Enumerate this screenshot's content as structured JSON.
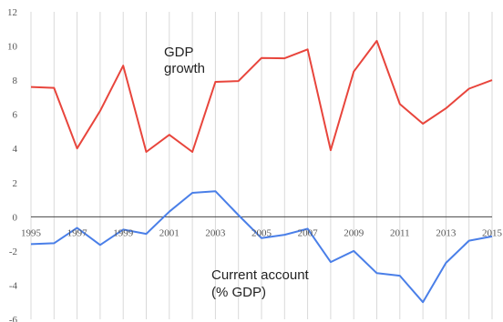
{
  "chart_data": {
    "type": "line",
    "title": "",
    "xlabel": "",
    "ylabel": "",
    "xlim": [
      1995,
      2015
    ],
    "ylim": [
      -6,
      12
    ],
    "y_ticks": [
      -6,
      -4,
      -2,
      0,
      2,
      4,
      6,
      8,
      10,
      12
    ],
    "x_ticks": [
      1995,
      1997,
      1999,
      2001,
      2003,
      2005,
      2007,
      2009,
      2011,
      2013,
      2015
    ],
    "x": [
      1995,
      1996,
      1997,
      1998,
      1999,
      2000,
      2001,
      2002,
      2003,
      2004,
      2005,
      2006,
      2007,
      2008,
      2009,
      2010,
      2011,
      2012,
      2013,
      2014,
      2015
    ],
    "grid": "vertical",
    "series": [
      {
        "name": "GDP growth",
        "label_lines": [
          "GDP",
          "growth"
        ],
        "color": "#e8453c",
        "values": [
          7.6,
          7.55,
          4.0,
          6.2,
          8.85,
          3.8,
          4.8,
          3.8,
          7.9,
          7.95,
          9.3,
          9.28,
          9.8,
          3.9,
          8.5,
          10.3,
          6.6,
          5.45,
          6.35,
          7.5,
          8.0
        ]
      },
      {
        "name": "Current account (% GDP)",
        "label_lines": [
          "Current account",
          "(% GDP)"
        ],
        "color": "#4a7fe8",
        "values": [
          -1.6,
          -1.55,
          -0.65,
          -1.65,
          -0.75,
          -1.0,
          0.3,
          1.4,
          1.5,
          0.1,
          -1.25,
          -1.05,
          -0.7,
          -2.65,
          -2.0,
          -3.3,
          -3.45,
          -5.0,
          -2.7,
          -1.4,
          -1.15
        ]
      }
    ]
  }
}
